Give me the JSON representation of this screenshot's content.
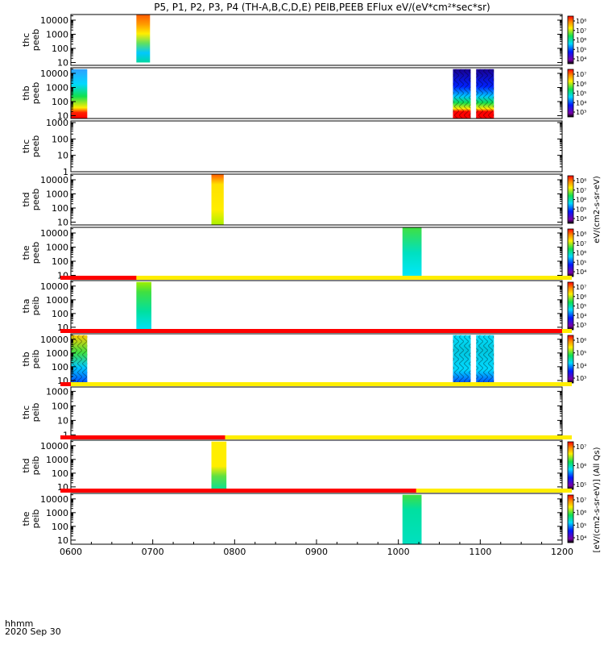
{
  "chart_data": {
    "type": "heatmap",
    "title": "P5, P1, P2, P3, P4 (TH-A,B,C,D,E) PEIB,PEEB EFlux eV/(eV*cm²*sec*sr)",
    "x_ticks": [
      "0600",
      "0700",
      "0800",
      "0900",
      "1000",
      "1100",
      "1200"
    ],
    "x_range": [
      "0600",
      "1200"
    ],
    "x_footer": [
      "hhmm",
      "2020 Sep 30"
    ],
    "colorbar_label_electron": "eV/(cm2-s-sr-eV)",
    "colorbar_label_ion": "[eV/(cm2-s-sr-eV)] (All Qs)",
    "panels": [
      {
        "probe": "thc",
        "instrument": "peeb",
        "y_ticks": [
          "10",
          "100",
          "1000",
          "10000"
        ],
        "y_decades": [
          0.8,
          4.4
        ],
        "colorbar": true,
        "colorbar_ticks": [
          "10⁴",
          "10⁵",
          "10⁶",
          "10⁷",
          "10⁸"
        ],
        "blocks": [
          {
            "start": "0648",
            "end": "0658",
            "style": "e_hot",
            "y_from": 1.0,
            "y_to": 4.4
          }
        ]
      },
      {
        "probe": "thb",
        "instrument": "peeb",
        "y_ticks": [
          "10",
          "100",
          "1000",
          "10000"
        ],
        "y_decades": [
          0.8,
          4.4
        ],
        "colorbar": true,
        "colorbar_ticks": [
          "10³",
          "10⁴",
          "10⁵",
          "10⁶",
          "10⁷"
        ],
        "blocks": [
          {
            "start": "0600",
            "end": "0612",
            "style": "e_cool",
            "y_from": 0.8,
            "y_to": 4.3
          },
          {
            "start": "1040",
            "end": "1053",
            "style": "e_stripe",
            "y_from": 0.8,
            "y_to": 4.3
          },
          {
            "start": "1057",
            "end": "1110",
            "style": "e_stripe",
            "y_from": 0.8,
            "y_to": 4.3
          }
        ]
      },
      {
        "probe": "thc",
        "instrument": "peeb",
        "y_ticks": [
          "1",
          "10",
          "100",
          "1000"
        ],
        "y_decades": [
          0,
          3.1
        ],
        "colorbar": false,
        "blocks": []
      },
      {
        "probe": "thd",
        "instrument": "peeb",
        "y_ticks": [
          "10",
          "100",
          "1000",
          "10000"
        ],
        "y_decades": [
          0.8,
          4.4
        ],
        "colorbar": true,
        "colorbar_ticks": [
          "10⁴",
          "10⁵",
          "10⁶",
          "10⁷",
          "10⁸"
        ],
        "blocks": [
          {
            "start": "0743",
            "end": "0752",
            "style": "e_yellow",
            "y_from": 0.8,
            "y_to": 4.4
          }
        ]
      },
      {
        "probe": "the",
        "instrument": "peeb",
        "y_ticks": [
          "10",
          "100",
          "1000",
          "10000"
        ],
        "y_decades": [
          0.8,
          4.4
        ],
        "colorbar": true,
        "colorbar_ticks": [
          "10⁴",
          "10⁵",
          "10⁶",
          "10⁷",
          "10⁸"
        ],
        "blocks": [
          {
            "start": "1003",
            "end": "1017",
            "style": "e_teal",
            "y_from": 0.8,
            "y_to": 4.4
          }
        ]
      },
      {
        "probe": "tha",
        "instrument": "peib",
        "y_ticks": [
          "10",
          "100",
          "1000",
          "10000"
        ],
        "y_decades": [
          0.7,
          4.4
        ],
        "colorbar": true,
        "colorbar_ticks": [
          "10³",
          "10⁴",
          "10⁵",
          "10⁶",
          "10⁷"
        ],
        "bar": {
          "red_until": "0648"
        },
        "blocks": [
          {
            "start": "0648",
            "end": "0659",
            "style": "i_green",
            "y_from": 0.7,
            "y_to": 4.3
          }
        ]
      },
      {
        "probe": "thb",
        "instrument": "peib",
        "y_ticks": [
          "10",
          "100",
          "1000",
          "10000"
        ],
        "y_decades": [
          0.7,
          4.4
        ],
        "colorbar": true,
        "colorbar_ticks": [
          "10³",
          "10⁴",
          "10⁵",
          "10⁶"
        ],
        "bar": {
          "red_until": "1200"
        },
        "blocks": [
          {
            "start": "0600",
            "end": "0612",
            "style": "i_mixed",
            "y_from": 0.7,
            "y_to": 4.3
          },
          {
            "start": "1040",
            "end": "1053",
            "style": "i_stripe",
            "y_from": 0.7,
            "y_to": 4.3
          },
          {
            "start": "1057",
            "end": "1110",
            "style": "i_stripe",
            "y_from": 0.7,
            "y_to": 4.3
          }
        ]
      },
      {
        "probe": "thc",
        "instrument": "peib",
        "y_ticks": [
          "1",
          "10",
          "100",
          "1000"
        ],
        "y_decades": [
          -0.2,
          3.3
        ],
        "colorbar": false,
        "bar": {
          "red_until": "0600"
        },
        "blocks": []
      },
      {
        "probe": "thd",
        "instrument": "peib",
        "y_ticks": [
          "10",
          "100",
          "1000",
          "10000"
        ],
        "y_decades": [
          0.7,
          4.4
        ],
        "colorbar": true,
        "colorbar_ticks": [
          "10⁵",
          "10⁶",
          "10⁷"
        ],
        "bar": {
          "red_until": "0753"
        },
        "blocks": [
          {
            "start": "0743",
            "end": "0754",
            "style": "i_yellow",
            "y_from": 0.7,
            "y_to": 4.3
          }
        ]
      },
      {
        "probe": "the",
        "instrument": "peib",
        "y_ticks": [
          "10",
          "100",
          "1000",
          "10000"
        ],
        "y_decades": [
          0.7,
          4.4
        ],
        "colorbar": true,
        "colorbar_ticks": [
          "10⁴",
          "10⁵",
          "10⁶",
          "10⁷"
        ],
        "bar": {
          "red_until": "1013"
        },
        "blocks": [
          {
            "start": "1003",
            "end": "1017",
            "style": "i_teal",
            "y_from": 0.7,
            "y_to": 4.3
          }
        ]
      }
    ]
  }
}
